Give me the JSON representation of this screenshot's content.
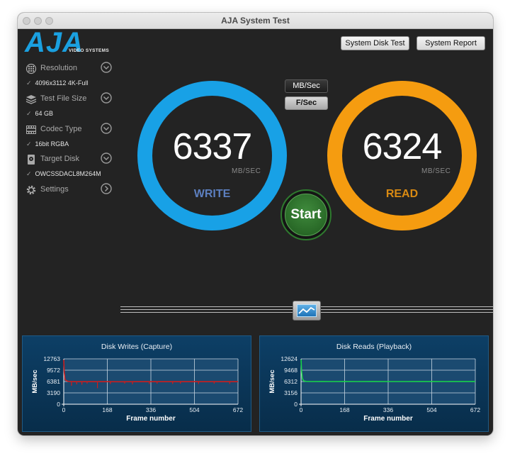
{
  "window": {
    "title": "AJA System Test"
  },
  "logo": {
    "text": "AJA",
    "subtitle": "VIDEO SYSTEMS"
  },
  "header_buttons": {
    "disk_test": "System Disk Test",
    "report": "System Report"
  },
  "sidebar": {
    "items": [
      {
        "label": "Resolution",
        "value": "4096x3112 4K-Full",
        "icon": "resolution-icon",
        "control": "chevron-down"
      },
      {
        "label": "Test File Size",
        "value": "64 GB",
        "icon": "file-stack-icon",
        "control": "chevron-down"
      },
      {
        "label": "Codec Type",
        "value": "16bit RGBA",
        "icon": "film-strip-icon",
        "control": "chevron-down"
      },
      {
        "label": "Target Disk",
        "value": "OWCSSDACL8M264M",
        "icon": "disk-icon",
        "control": "chevron-down"
      },
      {
        "label": "Settings",
        "value": "",
        "icon": "gear-icon",
        "control": "chevron-right"
      }
    ],
    "check": "✓"
  },
  "unit_toggle": {
    "mbsec": "MB/Sec",
    "fsec": "F/Sec"
  },
  "write": {
    "value": "6337",
    "unit": "MB/SEC",
    "label": "WRITE",
    "color": "#18a1e6"
  },
  "read": {
    "value": "6324",
    "unit": "MB/SEC",
    "label": "READ",
    "color": "#f59c10"
  },
  "start_button": {
    "label": "Start"
  },
  "graphs": {
    "writes": {
      "title": "Disk Writes (Capture)",
      "ylabel": "MB/sec",
      "xlabel": "Frame number",
      "yticks": [
        "12763",
        "9572",
        "6381",
        "3190",
        "0"
      ],
      "xticks": [
        "0",
        "168",
        "336",
        "504",
        "672"
      ],
      "line_color": "#cc1d1d"
    },
    "reads": {
      "title": "Disk Reads (Playback)",
      "ylabel": "MB/sec",
      "xlabel": "Frame number",
      "yticks": [
        "12624",
        "9468",
        "6312",
        "3156",
        "0"
      ],
      "xticks": [
        "0",
        "168",
        "336",
        "504",
        "672"
      ],
      "line_color": "#19d34a"
    }
  },
  "chart_data": [
    {
      "type": "line",
      "title": "Disk Writes (Capture)",
      "xlabel": "Frame number",
      "ylabel": "MB/sec",
      "xlim": [
        0,
        672
      ],
      "ylim": [
        0,
        12763
      ],
      "x_ticks": [
        0,
        168,
        336,
        504,
        672
      ],
      "y_ticks": [
        0,
        3190,
        6381,
        9572,
        12763
      ],
      "series": [
        {
          "x": [
            0,
            2,
            5,
            10,
            20,
            40,
            80,
            120,
            168,
            220,
            280,
            336,
            400,
            460,
            504,
            560,
            620,
            672
          ],
          "y": [
            12500,
            9000,
            7000,
            6600,
            6400,
            6350,
            6340,
            6335,
            6340,
            6330,
            6340,
            6338,
            6335,
            6340,
            6337,
            6335,
            6340,
            6337
          ]
        }
      ],
      "dips": [
        {
          "x": 30,
          "y": 5200
        },
        {
          "x": 50,
          "y": 5600
        },
        {
          "x": 70,
          "y": 5500
        },
        {
          "x": 90,
          "y": 5800
        },
        {
          "x": 130,
          "y": 4500
        },
        {
          "x": 180,
          "y": 5700
        },
        {
          "x": 235,
          "y": 5800
        },
        {
          "x": 265,
          "y": 5600
        },
        {
          "x": 330,
          "y": 5700
        },
        {
          "x": 360,
          "y": 5800
        },
        {
          "x": 420,
          "y": 5700
        },
        {
          "x": 450,
          "y": 5800
        },
        {
          "x": 520,
          "y": 5700
        },
        {
          "x": 580,
          "y": 5800
        },
        {
          "x": 640,
          "y": 5700
        }
      ],
      "grid": true
    },
    {
      "type": "line",
      "title": "Disk Reads (Playback)",
      "xlabel": "Frame number",
      "ylabel": "MB/sec",
      "xlim": [
        0,
        672
      ],
      "ylim": [
        0,
        12624
      ],
      "x_ticks": [
        0,
        168,
        336,
        504,
        672
      ],
      "y_ticks": [
        0,
        3156,
        6312,
        9468,
        12624
      ],
      "series": [
        {
          "x": [
            0,
            2,
            5,
            10,
            20,
            40,
            80,
            120,
            168,
            220,
            280,
            336,
            400,
            460,
            504,
            560,
            620,
            672
          ],
          "y": [
            12400,
            9500,
            7200,
            6500,
            6350,
            6320,
            6330,
            6310,
            6325,
            6315,
            6330,
            6320,
            6315,
            6330,
            6324,
            6318,
            6328,
            6324
          ]
        }
      ],
      "grid": true
    }
  ]
}
